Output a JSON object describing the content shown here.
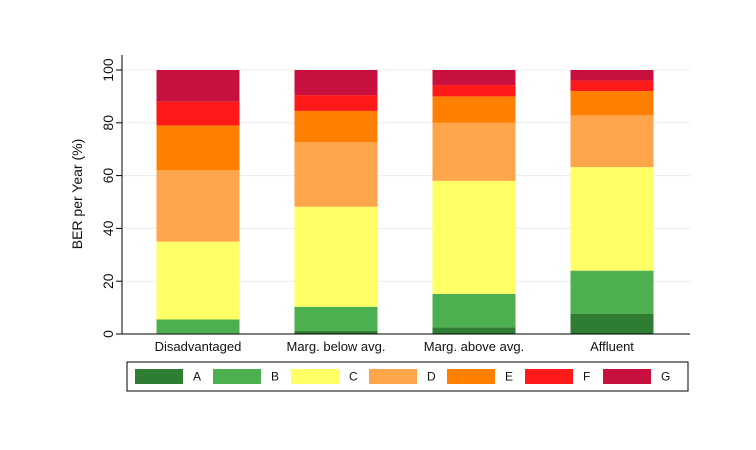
{
  "chart_data": {
    "type": "bar",
    "stacked": true,
    "categories": [
      "Disadvantaged",
      "Marg. below avg.",
      "Marg. above avg.",
      "Affluent"
    ],
    "ylabel": "BER per Year (%)",
    "xlabel": "",
    "ylim": [
      0,
      100
    ],
    "yticks": [
      0,
      20,
      40,
      60,
      80,
      100
    ],
    "grid": true,
    "legend": "bottom",
    "series": [
      {
        "name": "A",
        "color": "#2e7d32",
        "values": [
          0.3,
          1.2,
          2.5,
          7.7
        ]
      },
      {
        "name": "B",
        "color": "#4caf50",
        "values": [
          5.2,
          9.1,
          12.7,
          16.3
        ]
      },
      {
        "name": "C",
        "color": "#ffff66",
        "values": [
          29.5,
          37.9,
          42.8,
          39.2
        ]
      },
      {
        "name": "D",
        "color": "#ffa64d",
        "values": [
          27.0,
          24.4,
          22.0,
          19.6
        ]
      },
      {
        "name": "E",
        "color": "#ff8000",
        "values": [
          17.0,
          11.9,
          10.0,
          9.2
        ]
      },
      {
        "name": "F",
        "color": "#ff1a1a",
        "values": [
          9.0,
          6.0,
          4.3,
          4.0
        ]
      },
      {
        "name": "G",
        "color": "#c8103e",
        "values": [
          12.0,
          9.5,
          5.7,
          4.0
        ]
      }
    ]
  }
}
